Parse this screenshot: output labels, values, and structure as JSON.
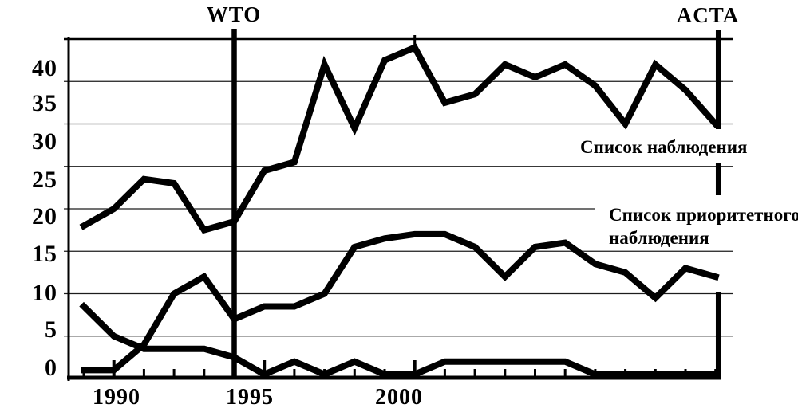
{
  "annotations": {
    "wto": {
      "label": "WTO",
      "year": 1994
    },
    "acta": {
      "label": "ACTA",
      "year": 2010.1
    }
  },
  "series_labels": {
    "watch_list": "Список наблюдения",
    "priority_line1": "Список приоритетного",
    "priority_line2": "наблюдения"
  },
  "axis": {
    "y_labels": [
      "40",
      "35",
      "30",
      "25",
      "20",
      "15",
      "10",
      "5",
      "0"
    ],
    "x_labels": [
      "1990",
      "1995",
      "2000"
    ]
  },
  "colors": {
    "ink": "#000000",
    "background": "#ffffff"
  },
  "chart_data": {
    "type": "line",
    "x": [
      1989,
      1990,
      1991,
      1992,
      1993,
      1994,
      1995,
      1996,
      1997,
      1998,
      1999,
      2000,
      2001,
      2002,
      2003,
      2004,
      2005,
      2006,
      2007,
      2008,
      2009,
      2010
    ],
    "series": [
      {
        "name": "Список наблюдения",
        "values": [
          18,
          20,
          23.5,
          23,
          17.5,
          18.5,
          24.5,
          25.5,
          37,
          29.5,
          37.5,
          39,
          32.5,
          33.5,
          37,
          35.5,
          37,
          34.5,
          30,
          37,
          34,
          30
        ]
      },
      {
        "name": "Список приоритетного наблюдения",
        "values": [
          1,
          1,
          4,
          10,
          12,
          7,
          8.5,
          8.5,
          10,
          15.5,
          16.5,
          17,
          17,
          15.5,
          12,
          15.5,
          16,
          13.5,
          12.5,
          9.5,
          13,
          12
        ]
      },
      {
        "name": "",
        "values": [
          8.5,
          5,
          3.5,
          3.5,
          3.5,
          2.5,
          0.5,
          2,
          0.5,
          2,
          0.5,
          0.5,
          2,
          2,
          2,
          2,
          2,
          0.5,
          0.5,
          0.5,
          0.5,
          0.5
        ]
      }
    ],
    "annotations": [
      {
        "label": "WTO",
        "year": 1994
      },
      {
        "label": "ACTA",
        "year": 2010.1
      }
    ],
    "yticks": [
      0,
      5,
      10,
      15,
      20,
      25,
      30,
      35,
      40
    ],
    "xticks_labeled": [
      1990,
      1995,
      2000
    ],
    "xticks_minor_years": [
      1989,
      1990,
      1991,
      1992,
      1993,
      1994,
      1995,
      1996,
      1997,
      1998,
      1999,
      2000,
      2001,
      2002,
      2003,
      2004,
      2005,
      2006,
      2007,
      2008,
      2009,
      2010
    ],
    "xlim": [
      1989,
      2010
    ],
    "ylim": [
      0,
      40
    ],
    "grid": "horizontal",
    "legend_position": "labels-inside-right"
  }
}
